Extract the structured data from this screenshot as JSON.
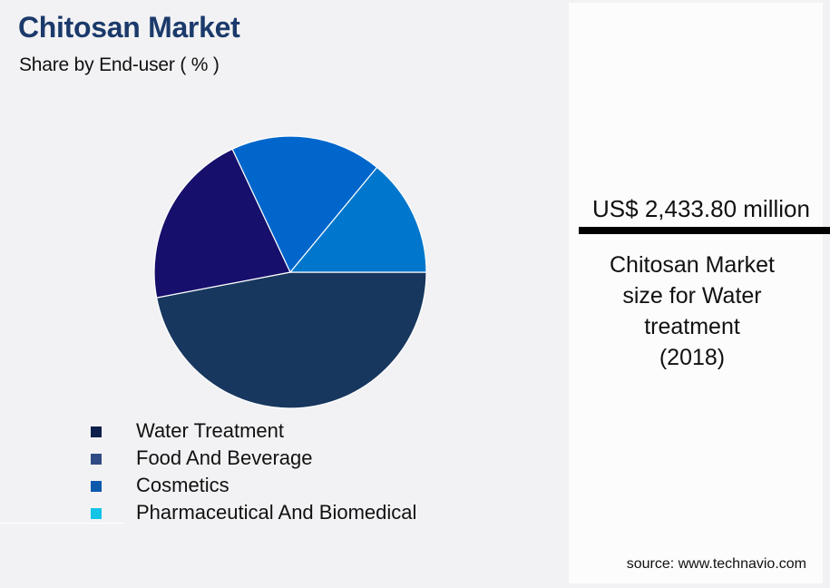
{
  "header": {
    "title": "Chitosan Market",
    "subtitle": "Share by End-user ( % )"
  },
  "legend": [
    {
      "label": "Water Treatment",
      "color": "#0f1f4b"
    },
    {
      "label": "Food And Beverage",
      "color": "#2f4a85"
    },
    {
      "label": "Cosmetics",
      "color": "#0d5aad"
    },
    {
      "label": "Pharmaceutical And Biomedical",
      "color": "#13c4e6"
    }
  ],
  "highlight": {
    "value": "US$ 2,433.80 million",
    "description_lines": [
      "Chitosan Market",
      "size for Water",
      "treatment",
      "(2018)"
    ]
  },
  "source": "source: www.technavio.com",
  "chart_data": {
    "type": "pie",
    "title": "Chitosan Market",
    "subtitle": "Share by End-user ( % )",
    "categories": [
      "Water Treatment",
      "Food And Beverage",
      "Cosmetics",
      "Pharmaceutical And Biomedical"
    ],
    "values": [
      47,
      21,
      18,
      14
    ],
    "slice_colors": [
      "#17375e",
      "#160f6b",
      "#0066cc",
      "#0077cc"
    ],
    "legend_position": "bottom",
    "start_angle_deg": 0,
    "direction": "clockwise",
    "annotation": "US$ 2,433.80 million — Chitosan Market size for Water treatment (2018)"
  }
}
